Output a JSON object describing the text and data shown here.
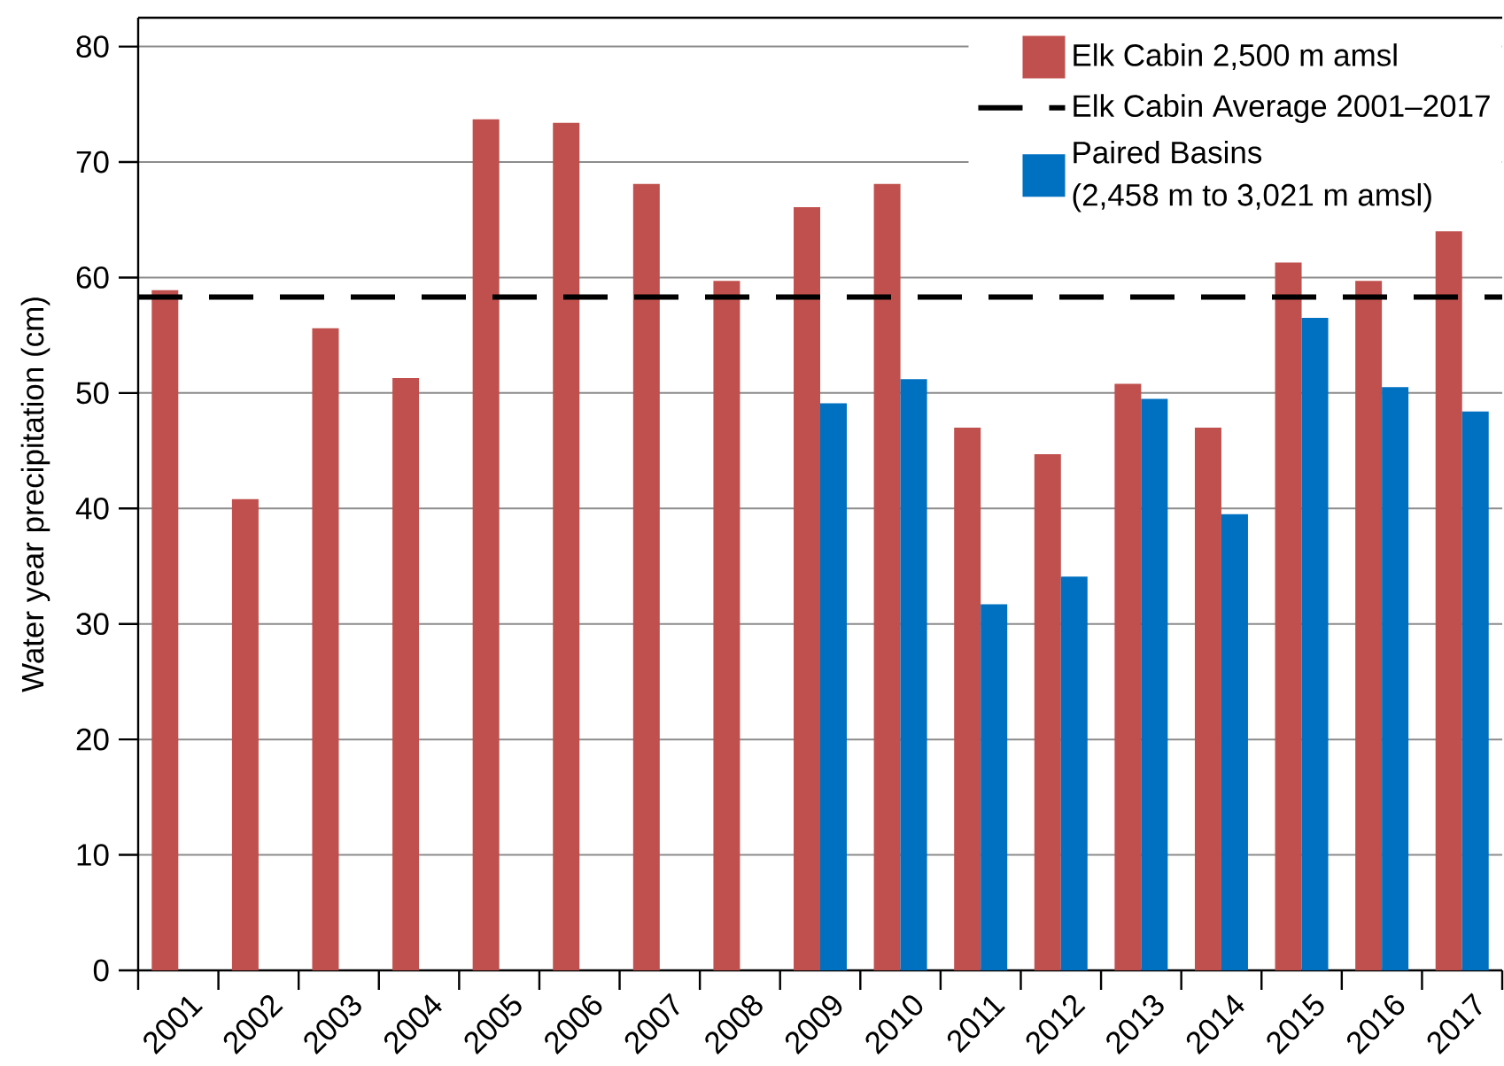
{
  "chart_data": {
    "type": "bar",
    "categories": [
      "2001",
      "2002",
      "2003",
      "2004",
      "2005",
      "2006",
      "2007",
      "2008",
      "2009",
      "2010",
      "2011",
      "2012",
      "2013",
      "2014",
      "2015",
      "2016",
      "2017"
    ],
    "series": [
      {
        "name": "Elk Cabin 2,500 m amsl",
        "color": "#c0504d",
        "values": [
          58.9,
          40.8,
          55.6,
          51.3,
          73.7,
          73.4,
          68.1,
          59.7,
          66.1,
          68.1,
          47.0,
          44.7,
          50.8,
          47.0,
          61.3,
          59.7,
          64.0
        ]
      },
      {
        "name": "Paired Basins\n(2,458 m to 3,021 m amsl)",
        "color": "#0070c0",
        "values": [
          null,
          null,
          null,
          null,
          null,
          null,
          null,
          null,
          49.1,
          51.2,
          31.7,
          34.1,
          49.5,
          39.5,
          56.5,
          50.5,
          48.4
        ]
      }
    ],
    "ylabel": "Water year precipitation (cm)",
    "ylim": [
      0,
      82.5
    ],
    "yticks": [
      0,
      10,
      20,
      30,
      40,
      50,
      60,
      70,
      80
    ],
    "grid": "y",
    "legend": "top right",
    "ref_lines": [
      {
        "axis": "y",
        "value": 58.3,
        "label": "Elk Cabin Average 2001–2017",
        "color": "#000000",
        "line_style": "dashed"
      }
    ]
  }
}
